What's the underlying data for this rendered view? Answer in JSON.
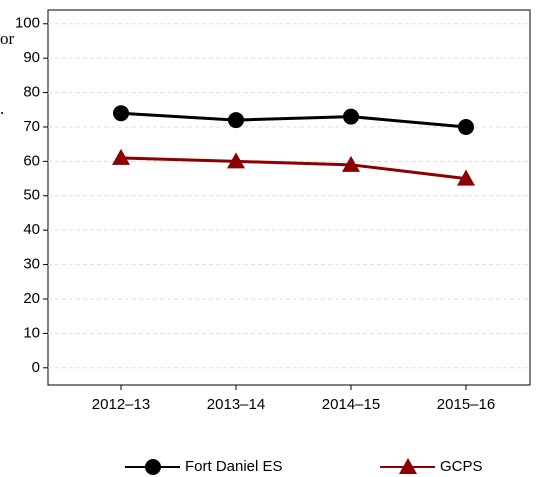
{
  "chart_data": {
    "type": "line",
    "annotations": [
      "or",
      "."
    ],
    "categories": [
      "2012–13",
      "2013–14",
      "2014–15",
      "2015–16"
    ],
    "series": [
      {
        "name": "Fort Daniel ES",
        "color": "#000000",
        "marker": "circle",
        "values": [
          74,
          72,
          73,
          70
        ]
      },
      {
        "name": "GCPS",
        "color": "#8b0000",
        "marker": "triangle",
        "values": [
          61,
          60,
          59,
          55
        ]
      }
    ],
    "ylim": [
      -5,
      104
    ],
    "yticks": [
      0,
      10,
      20,
      30,
      40,
      50,
      60,
      70,
      80,
      90,
      100
    ],
    "grid": true,
    "legend": "bottom"
  }
}
